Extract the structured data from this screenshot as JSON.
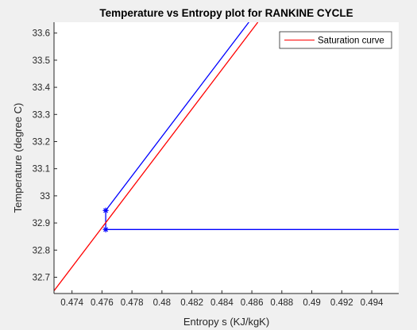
{
  "chart_data": {
    "type": "line",
    "title": "Temperature vs Entropy plot for RANKINE CYCLE",
    "xlabel": "Entropy s (KJ/kgK)",
    "ylabel": "Temperature (degree C)",
    "xlim": [
      0.4728,
      0.4958
    ],
    "ylim": [
      32.64,
      33.64
    ],
    "xticks": [
      0.474,
      0.476,
      0.478,
      0.48,
      0.482,
      0.484,
      0.486,
      0.488,
      0.49,
      0.492,
      0.494
    ],
    "yticks": [
      32.7,
      32.8,
      32.9,
      33,
      33.1,
      33.2,
      33.3,
      33.4,
      33.5,
      33.6
    ],
    "xtick_labels": [
      "0.474",
      "0.476",
      "0.478",
      "0.48",
      "0.482",
      "0.484",
      "0.486",
      "0.488",
      "0.49",
      "0.492",
      "0.494"
    ],
    "ytick_labels": [
      "32.7",
      "32.8",
      "32.9",
      "33",
      "33.1",
      "33.2",
      "33.3",
      "33.4",
      "33.5",
      "33.6"
    ],
    "series": [
      {
        "name": "",
        "color": "#0000ff",
        "marker": "asterisk",
        "x": [
          0.49582,
          0.47625,
          0.47625,
          0.4858
        ],
        "y": [
          32.876,
          32.876,
          32.946,
          33.64
        ],
        "marker_indices": [
          1,
          2
        ]
      },
      {
        "name": "Saturation curve",
        "color": "#ff0000",
        "marker": "none",
        "x": [
          0.4728,
          0.4864
        ],
        "y": [
          32.65,
          33.64
        ]
      }
    ],
    "legend": {
      "position": "top-right",
      "entries": [
        "Saturation curve"
      ]
    },
    "grid": false
  }
}
